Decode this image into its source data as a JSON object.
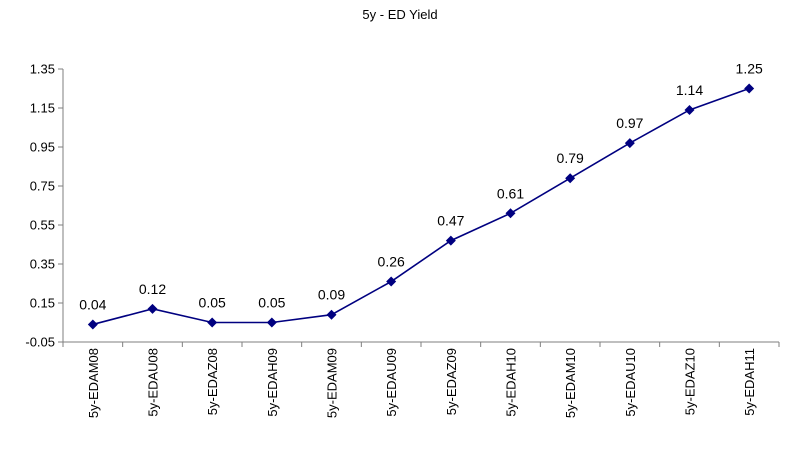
{
  "chart_data": {
    "type": "line",
    "title": "5y - ED Yield",
    "xlabel": "",
    "ylabel": "",
    "categories": [
      "5y-EDAM08",
      "5y-EDAU08",
      "5y-EDAZ08",
      "5y-EDAH09",
      "5y-EDAM09",
      "5y-EDAU09",
      "5y-EDAZ09",
      "5y-EDAH10",
      "5y-EDAM10",
      "5y-EDAU10",
      "5y-EDAZ10",
      "5y-EDAH11"
    ],
    "values": [
      0.04,
      0.12,
      0.05,
      0.05,
      0.09,
      0.26,
      0.47,
      0.61,
      0.79,
      0.97,
      1.14,
      1.25
    ],
    "data_labels": [
      "0.04",
      "0.12",
      "0.05",
      "0.05",
      "0.09",
      "0.26",
      "0.47",
      "0.61",
      "0.79",
      "0.97",
      "1.14",
      "1.25"
    ],
    "y_ticks": [
      "-0.05",
      "0.15",
      "0.35",
      "0.55",
      "0.75",
      "0.95",
      "1.15",
      "1.35"
    ],
    "ylim": [
      -0.05,
      1.35
    ],
    "grid": false,
    "legend": "none",
    "colors": {
      "series": "#000080",
      "axis": "#7f7f7f"
    }
  }
}
